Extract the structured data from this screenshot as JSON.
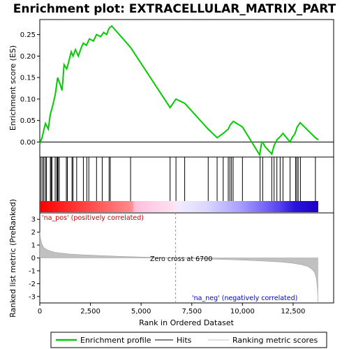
{
  "chart_data": [
    {
      "type": "line",
      "panel": "enrichment-profile",
      "title": "Enrichment plot: EXTRACELLULAR_MATRIX_PART",
      "ylabel": "Enrichment score (ES)",
      "ylim": [
        -0.035,
        0.285
      ],
      "xlim": [
        0,
        14500
      ],
      "yticks": [
        0.0,
        0.05,
        0.1,
        0.15,
        0.2,
        0.25
      ],
      "ytick_labels": [
        "0.00",
        "0.05",
        "0.10",
        "0.15",
        "0.20",
        "0.25"
      ],
      "line_color": "#00cc00",
      "series": [
        {
          "name": "Enrichment profile",
          "x": [
            0,
            120,
            200,
            280,
            420,
            520,
            640,
            760,
            880,
            1000,
            1100,
            1200,
            1330,
            1420,
            1550,
            1640,
            1760,
            1900,
            2050,
            2150,
            2300,
            2450,
            2650,
            2800,
            3000,
            3150,
            3300,
            3420,
            3550,
            4480,
            6430,
            6720,
            7150,
            8310,
            8750,
            9050,
            9300,
            9400,
            9550,
            10000,
            10850,
            10950,
            11000,
            11100,
            11450,
            11550,
            11700,
            11850,
            12000,
            12350,
            12450,
            12600,
            12700,
            12850,
            13600,
            13750
          ],
          "y": [
            -0.005,
            0.012,
            0.028,
            0.043,
            0.03,
            0.065,
            0.085,
            0.11,
            0.15,
            0.135,
            0.12,
            0.18,
            0.17,
            0.185,
            0.21,
            0.2,
            0.215,
            0.2,
            0.22,
            0.23,
            0.225,
            0.24,
            0.235,
            0.25,
            0.245,
            0.255,
            0.25,
            0.265,
            0.27,
            0.22,
            0.08,
            0.1,
            0.09,
            0.03,
            0.01,
            0.02,
            0.03,
            0.04,
            0.048,
            0.035,
            -0.03,
            0.0,
            0.0,
            -0.01,
            -0.028,
            -0.01,
            0.005,
            0.012,
            0.02,
            0.0,
            0.01,
            0.02,
            0.035,
            0.045,
            0.01,
            0.005
          ]
        }
      ]
    },
    {
      "type": "scatter",
      "panel": "hits",
      "series": [
        {
          "name": "Hits",
          "x": [
            60,
            140,
            200,
            280,
            330,
            520,
            560,
            600,
            760,
            840,
            870,
            900,
            960,
            1310,
            1360,
            1590,
            1640,
            1820,
            2150,
            2320,
            2420,
            2800,
            3080,
            3420,
            3480,
            4480,
            6430,
            6720,
            7150,
            8310,
            8750,
            9050,
            9300,
            9380,
            9460,
            9540,
            10000,
            10870,
            11000,
            11450,
            11560,
            11700,
            11860,
            12000,
            12350,
            12620,
            12680,
            12750,
            12860,
            13600
          ]
        }
      ]
    },
    {
      "type": "area",
      "panel": "ranked-list-metric",
      "ylabel": "Ranked list metric (PreRanked)",
      "xlabel": "Rank in Ordered Dataset",
      "ylim": [
        -3.5,
        3.5
      ],
      "xlim": [
        0,
        14500
      ],
      "yticks": [
        -3,
        -2,
        -1,
        0,
        1,
        2,
        3
      ],
      "ytick_labels": [
        "-3",
        "-2",
        "-1",
        "0",
        "1",
        "2",
        "3"
      ],
      "xticks": [
        0,
        2500,
        5000,
        7500,
        10000,
        12500
      ],
      "xtick_labels": [
        "0",
        "2,500",
        "5,000",
        "7,500",
        "10,000",
        "12,500"
      ],
      "series": [
        {
          "name": "Ranking metric scores",
          "x": [
            0,
            40,
            100,
            200,
            400,
            700,
            1000,
            1500,
            2000,
            3000,
            4000,
            5000,
            6000,
            6700,
            7500,
            8500,
            9500,
            10500,
            11500,
            12000,
            12500,
            12900,
            13200,
            13400,
            13550,
            13650,
            13700,
            13720
          ],
          "y": [
            2.0,
            1.5,
            1.1,
            0.8,
            0.6,
            0.45,
            0.38,
            0.3,
            0.25,
            0.18,
            0.12,
            0.07,
            0.03,
            0.0,
            -0.04,
            -0.09,
            -0.14,
            -0.2,
            -0.28,
            -0.33,
            -0.42,
            -0.52,
            -0.65,
            -0.85,
            -1.1,
            -1.6,
            -2.5,
            -3.4
          ]
        }
      ],
      "zero_cross_rank": 6700,
      "annotations": [
        "'na_pos' (positively correlated)",
        "'na_neg' (negatively correlated)",
        "Zero cross at 6700"
      ]
    }
  ],
  "labels": {
    "title": "Enrichment plot: EXTRACELLULAR_MATRIX_PART",
    "es_ylabel": "Enrichment score (ES)",
    "metric_ylabel": "Ranked list metric (PreRanked)",
    "xlabel": "Rank in Ordered Dataset",
    "na_pos": "'na_pos' (positively correlated)",
    "na_neg": "'na_neg' (negatively correlated)",
    "zero_cross": "Zero cross at 6700"
  },
  "legend": {
    "placement": "bottom",
    "items": [
      {
        "label": "Enrichment profile",
        "color": "#00cc00"
      },
      {
        "label": "Hits",
        "color": "#000000"
      },
      {
        "label": "Ranking metric scores",
        "color": "#c0c0c0"
      }
    ]
  },
  "colors": {
    "enrichment_line": "#00cc00",
    "hit_line": "#000000",
    "metric_fill": "#c0c0c0",
    "pos_label": "#cc0000",
    "neg_label": "#0000cc",
    "zero_line": "#999999"
  }
}
